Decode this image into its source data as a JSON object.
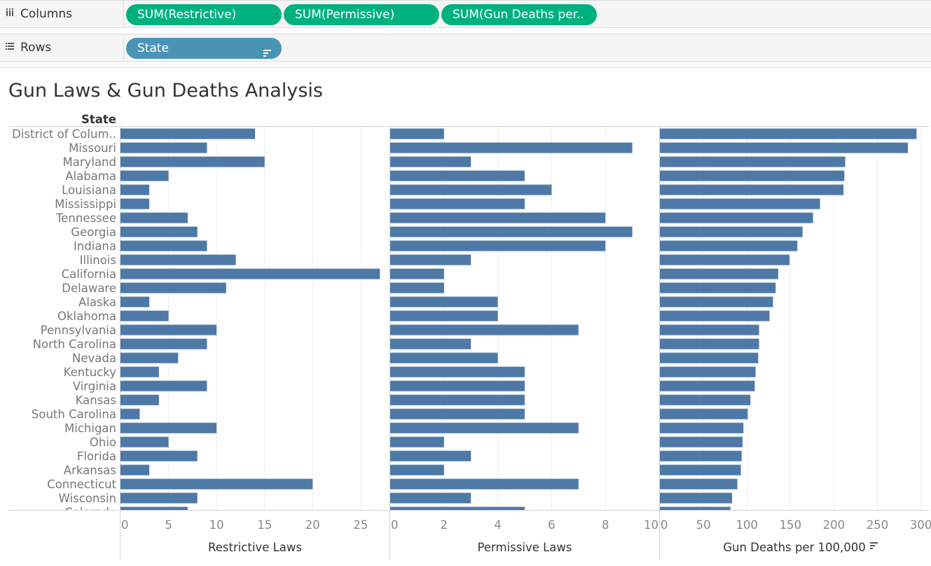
{
  "shelves": {
    "columns": {
      "icon": "columns-icon",
      "label": "Columns",
      "pills": [
        "SUM(Restrictive)",
        "SUM(Permissive)",
        "SUM(Gun Deaths per.."
      ]
    },
    "rows": {
      "icon": "rows-icon",
      "label": "Rows",
      "pills": [
        "State"
      ],
      "sort_icon": "sort-descending-icon"
    }
  },
  "colors": {
    "measure_pill": "#00b180",
    "dimension_pill": "#4a95b5",
    "bar": "#4e79a7"
  },
  "viz": {
    "title": "Gun Laws & Gun Deaths Analysis",
    "row_header": "State"
  },
  "chart_data": {
    "type": "bar",
    "orientation": "horizontal",
    "grid": true,
    "categories": [
      "District of Colum..",
      "Missouri",
      "Maryland",
      "Alabama",
      "Louisiana",
      "Mississippi",
      "Tennessee",
      "Georgia",
      "Indiana",
      "Illinois",
      "California",
      "Delaware",
      "Alaska",
      "Oklahoma",
      "Pennsylvania",
      "North Carolina",
      "Nevada",
      "Kentucky",
      "Virginia",
      "Kansas",
      "South Carolina",
      "Michigan",
      "Ohio",
      "Florida",
      "Arkansas",
      "Connecticut",
      "Wisconsin",
      "Colorado"
    ],
    "panels": [
      {
        "xlabel": "Restrictive Laws",
        "xlim": [
          0,
          28
        ],
        "ticks": [
          0,
          5,
          10,
          15,
          20,
          25
        ],
        "values": [
          14,
          9,
          15,
          5,
          3,
          3,
          7,
          8,
          9,
          12,
          27,
          11,
          3,
          5,
          10,
          9,
          6,
          4,
          9,
          4,
          2,
          10,
          5,
          8,
          3,
          20,
          8,
          7
        ]
      },
      {
        "xlabel": "Permissive Laws",
        "xlim": [
          0,
          10
        ],
        "ticks": [
          0,
          2,
          4,
          6,
          8,
          10
        ],
        "values": [
          2,
          9,
          3,
          5,
          6,
          5,
          8,
          9,
          8,
          3,
          2,
          2,
          4,
          4,
          7,
          3,
          4,
          5,
          5,
          5,
          5,
          7,
          2,
          3,
          2,
          7,
          3,
          5
        ]
      },
      {
        "xlabel": "Gun Deaths per 100,000",
        "sort_icon": "sort-descending-icon",
        "xlim": [
          0,
          310
        ],
        "ticks": [
          0,
          50,
          100,
          150,
          200,
          250,
          300
        ],
        "values": [
          295,
          285,
          213,
          212,
          211,
          184,
          176,
          164,
          158,
          149,
          136,
          133,
          130,
          126,
          114,
          114,
          113,
          110,
          109,
          104,
          101,
          96,
          95,
          94,
          93,
          89,
          83,
          81
        ]
      }
    ]
  }
}
